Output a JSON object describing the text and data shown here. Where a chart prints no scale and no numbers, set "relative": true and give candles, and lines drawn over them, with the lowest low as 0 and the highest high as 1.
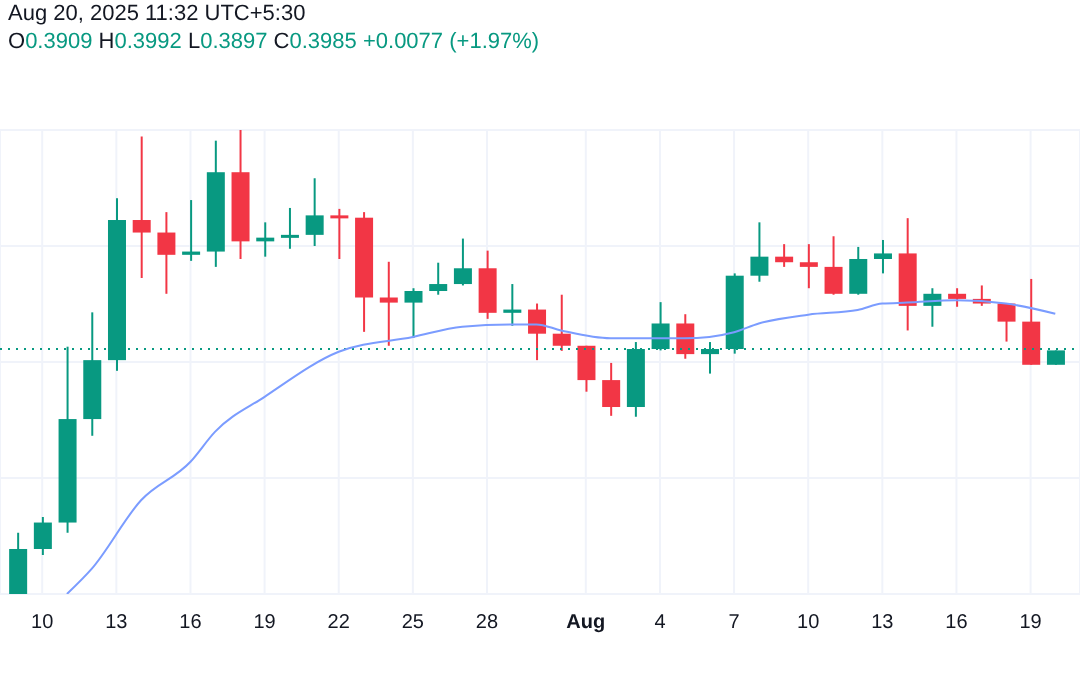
{
  "chart_data": {
    "type": "candlestick",
    "relative": true,
    "annotations": [
      "Aug 20, 2025 11:32 UTC+5:30",
      "O0.3909 H0.3992 L0.3897 C0.3985 +0.0077 (+1.97%)"
    ],
    "x": [
      "2025-07-09",
      "2025-07-10",
      "2025-07-11",
      "2025-07-12",
      "2025-07-13",
      "2025-07-14",
      "2025-07-15",
      "2025-07-16",
      "2025-07-17",
      "2025-07-18",
      "2025-07-19",
      "2025-07-20",
      "2025-07-21",
      "2025-07-22",
      "2025-07-23",
      "2025-07-24",
      "2025-07-25",
      "2025-07-26",
      "2025-07-27",
      "2025-07-28",
      "2025-07-29",
      "2025-07-30",
      "2025-07-31",
      "2025-08-01",
      "2025-08-02",
      "2025-08-03",
      "2025-08-04",
      "2025-08-05",
      "2025-08-06",
      "2025-08-07",
      "2025-08-08",
      "2025-08-09",
      "2025-08-10",
      "2025-08-11",
      "2025-08-12",
      "2025-08-13",
      "2025-08-14",
      "2025-08-15",
      "2025-08-16",
      "2025-08-17",
      "2025-08-18",
      "2025-08-19",
      "2025-08-20"
    ],
    "ohlc": [
      [
        0,
        0.132,
        0,
        0.097
      ],
      [
        0.097,
        0.166,
        0.084,
        0.154
      ],
      [
        0.154,
        0.533,
        0.132,
        0.377
      ],
      [
        0.377,
        0.607,
        0.341,
        0.504
      ],
      [
        0.504,
        0.853,
        0.481,
        0.806
      ],
      [
        0.806,
        0.986,
        0.681,
        0.779
      ],
      [
        0.779,
        0.823,
        0.647,
        0.731
      ],
      [
        0.731,
        0.849,
        0.718,
        0.738
      ],
      [
        0.738,
        0.977,
        0.705,
        0.909
      ],
      [
        0.909,
        1,
        0.722,
        0.76
      ],
      [
        0.76,
        0.801,
        0.727,
        0.768
      ],
      [
        0.768,
        0.832,
        0.744,
        0.774
      ],
      [
        0.774,
        0.896,
        0.75,
        0.816
      ],
      [
        0.816,
        0.83,
        0.722,
        0.811
      ],
      [
        0.811,
        0.823,
        0.565,
        0.639
      ],
      [
        0.639,
        0.716,
        0.535,
        0.628
      ],
      [
        0.628,
        0.659,
        0.552,
        0.653
      ],
      [
        0.653,
        0.714,
        0.645,
        0.668
      ],
      [
        0.668,
        0.766,
        0.665,
        0.702
      ],
      [
        0.702,
        0.74,
        0.593,
        0.606
      ],
      [
        0.606,
        0.668,
        0.578,
        0.613
      ],
      [
        0.613,
        0.626,
        0.504,
        0.561
      ],
      [
        0.561,
        0.645,
        0.524,
        0.535
      ],
      [
        0.535,
        0.535,
        0.436,
        0.461
      ],
      [
        0.461,
        0.498,
        0.384,
        0.403
      ],
      [
        0.403,
        0.543,
        0.382,
        0.528
      ],
      [
        0.528,
        0.629,
        0.525,
        0.583
      ],
      [
        0.583,
        0.603,
        0.507,
        0.517
      ],
      [
        0.517,
        0.543,
        0.475,
        0.528
      ],
      [
        0.528,
        0.691,
        0.518,
        0.686
      ],
      [
        0.686,
        0.801,
        0.673,
        0.727
      ],
      [
        0.727,
        0.754,
        0.705,
        0.715
      ],
      [
        0.715,
        0.754,
        0.659,
        0.705
      ],
      [
        0.705,
        0.771,
        0.645,
        0.647
      ],
      [
        0.647,
        0.748,
        0.645,
        0.722
      ],
      [
        0.722,
        0.763,
        0.691,
        0.734
      ],
      [
        0.734,
        0.81,
        0.568,
        0.621
      ],
      [
        0.621,
        0.659,
        0.576,
        0.647
      ],
      [
        0.647,
        0.659,
        0.619,
        0.636
      ],
      [
        0.636,
        0.665,
        0.621,
        0.626
      ],
      [
        0.626,
        0.627,
        0.544,
        0.587
      ],
      [
        0.587,
        0.679,
        0.494,
        0.494
      ],
      [
        0.494,
        0.525,
        0.494,
        0.525
      ]
    ],
    "colors": [
      "#089981",
      "#089981",
      "#089981",
      "#089981",
      "#089981",
      "#f23645",
      "#f23645",
      "#089981",
      "#089981",
      "#f23645",
      "#089981",
      "#089981",
      "#089981",
      "#f23645",
      "#f23645",
      "#f23645",
      "#089981",
      "#089981",
      "#089981",
      "#f23645",
      "#089981",
      "#f23645",
      "#f23645",
      "#f23645",
      "#f23645",
      "#089981",
      "#089981",
      "#f23645",
      "#089981",
      "#089981",
      "#089981",
      "#f23645",
      "#f23645",
      "#f23645",
      "#089981",
      "#089981",
      "#f23645",
      "#089981",
      "#f23645",
      "#f23645",
      "#f23645",
      "#f23645",
      "#089981"
    ],
    "series": [
      {
        "type": "line",
        "color": "#7b9cff",
        "x": [
          "2025-07-11",
          "2025-07-12",
          "2025-07-14",
          "2025-07-16",
          "2025-07-17",
          "2025-07-19",
          "2025-07-22",
          "2025-07-25",
          "2025-07-27",
          "2025-07-29",
          "2025-07-30",
          "2025-07-31",
          "2025-08-02",
          "2025-08-03",
          "2025-08-05",
          "2025-08-06",
          "2025-08-07",
          "2025-08-08",
          "2025-08-10",
          "2025-08-12",
          "2025-08-13",
          "2025-08-14",
          "2025-08-16",
          "2025-08-18",
          "2025-08-20"
        ],
        "values": [
          0,
          0.054,
          0.202,
          0.285,
          0.35,
          0.425,
          0.522,
          0.554,
          0.576,
          0.581,
          0.581,
          0.568,
          0.551,
          0.551,
          0.551,
          0.554,
          0.564,
          0.583,
          0.602,
          0.612,
          0.626,
          0.628,
          0.633,
          0.626,
          0.604
        ]
      }
    ],
    "ref_lines": [
      {
        "axis": "y",
        "value": 0.528,
        "color": "#089981",
        "line_style": "dotted"
      }
    ],
    "xlim": [
      "2025-07-08T07:00",
      "2025-08-21T00:00"
    ],
    "xticks": [
      {
        "value": "2025-07-10",
        "label": "10"
      },
      {
        "value": "2025-07-13",
        "label": "13"
      },
      {
        "value": "2025-07-16",
        "label": "16"
      },
      {
        "value": "2025-07-19",
        "label": "19"
      },
      {
        "value": "2025-07-22",
        "label": "22"
      },
      {
        "value": "2025-07-25",
        "label": "25"
      },
      {
        "value": "2025-07-28",
        "label": "28"
      },
      {
        "value": "2025-08-01",
        "label": "Aug"
      },
      {
        "value": "2025-08-04",
        "label": "4"
      },
      {
        "value": "2025-08-07",
        "label": "7"
      },
      {
        "value": "2025-08-10",
        "label": "10"
      },
      {
        "value": "2025-08-13",
        "label": "13"
      },
      {
        "value": "2025-08-16",
        "label": "16"
      },
      {
        "value": "2025-08-19",
        "label": "19"
      }
    ],
    "grid": true
  }
}
